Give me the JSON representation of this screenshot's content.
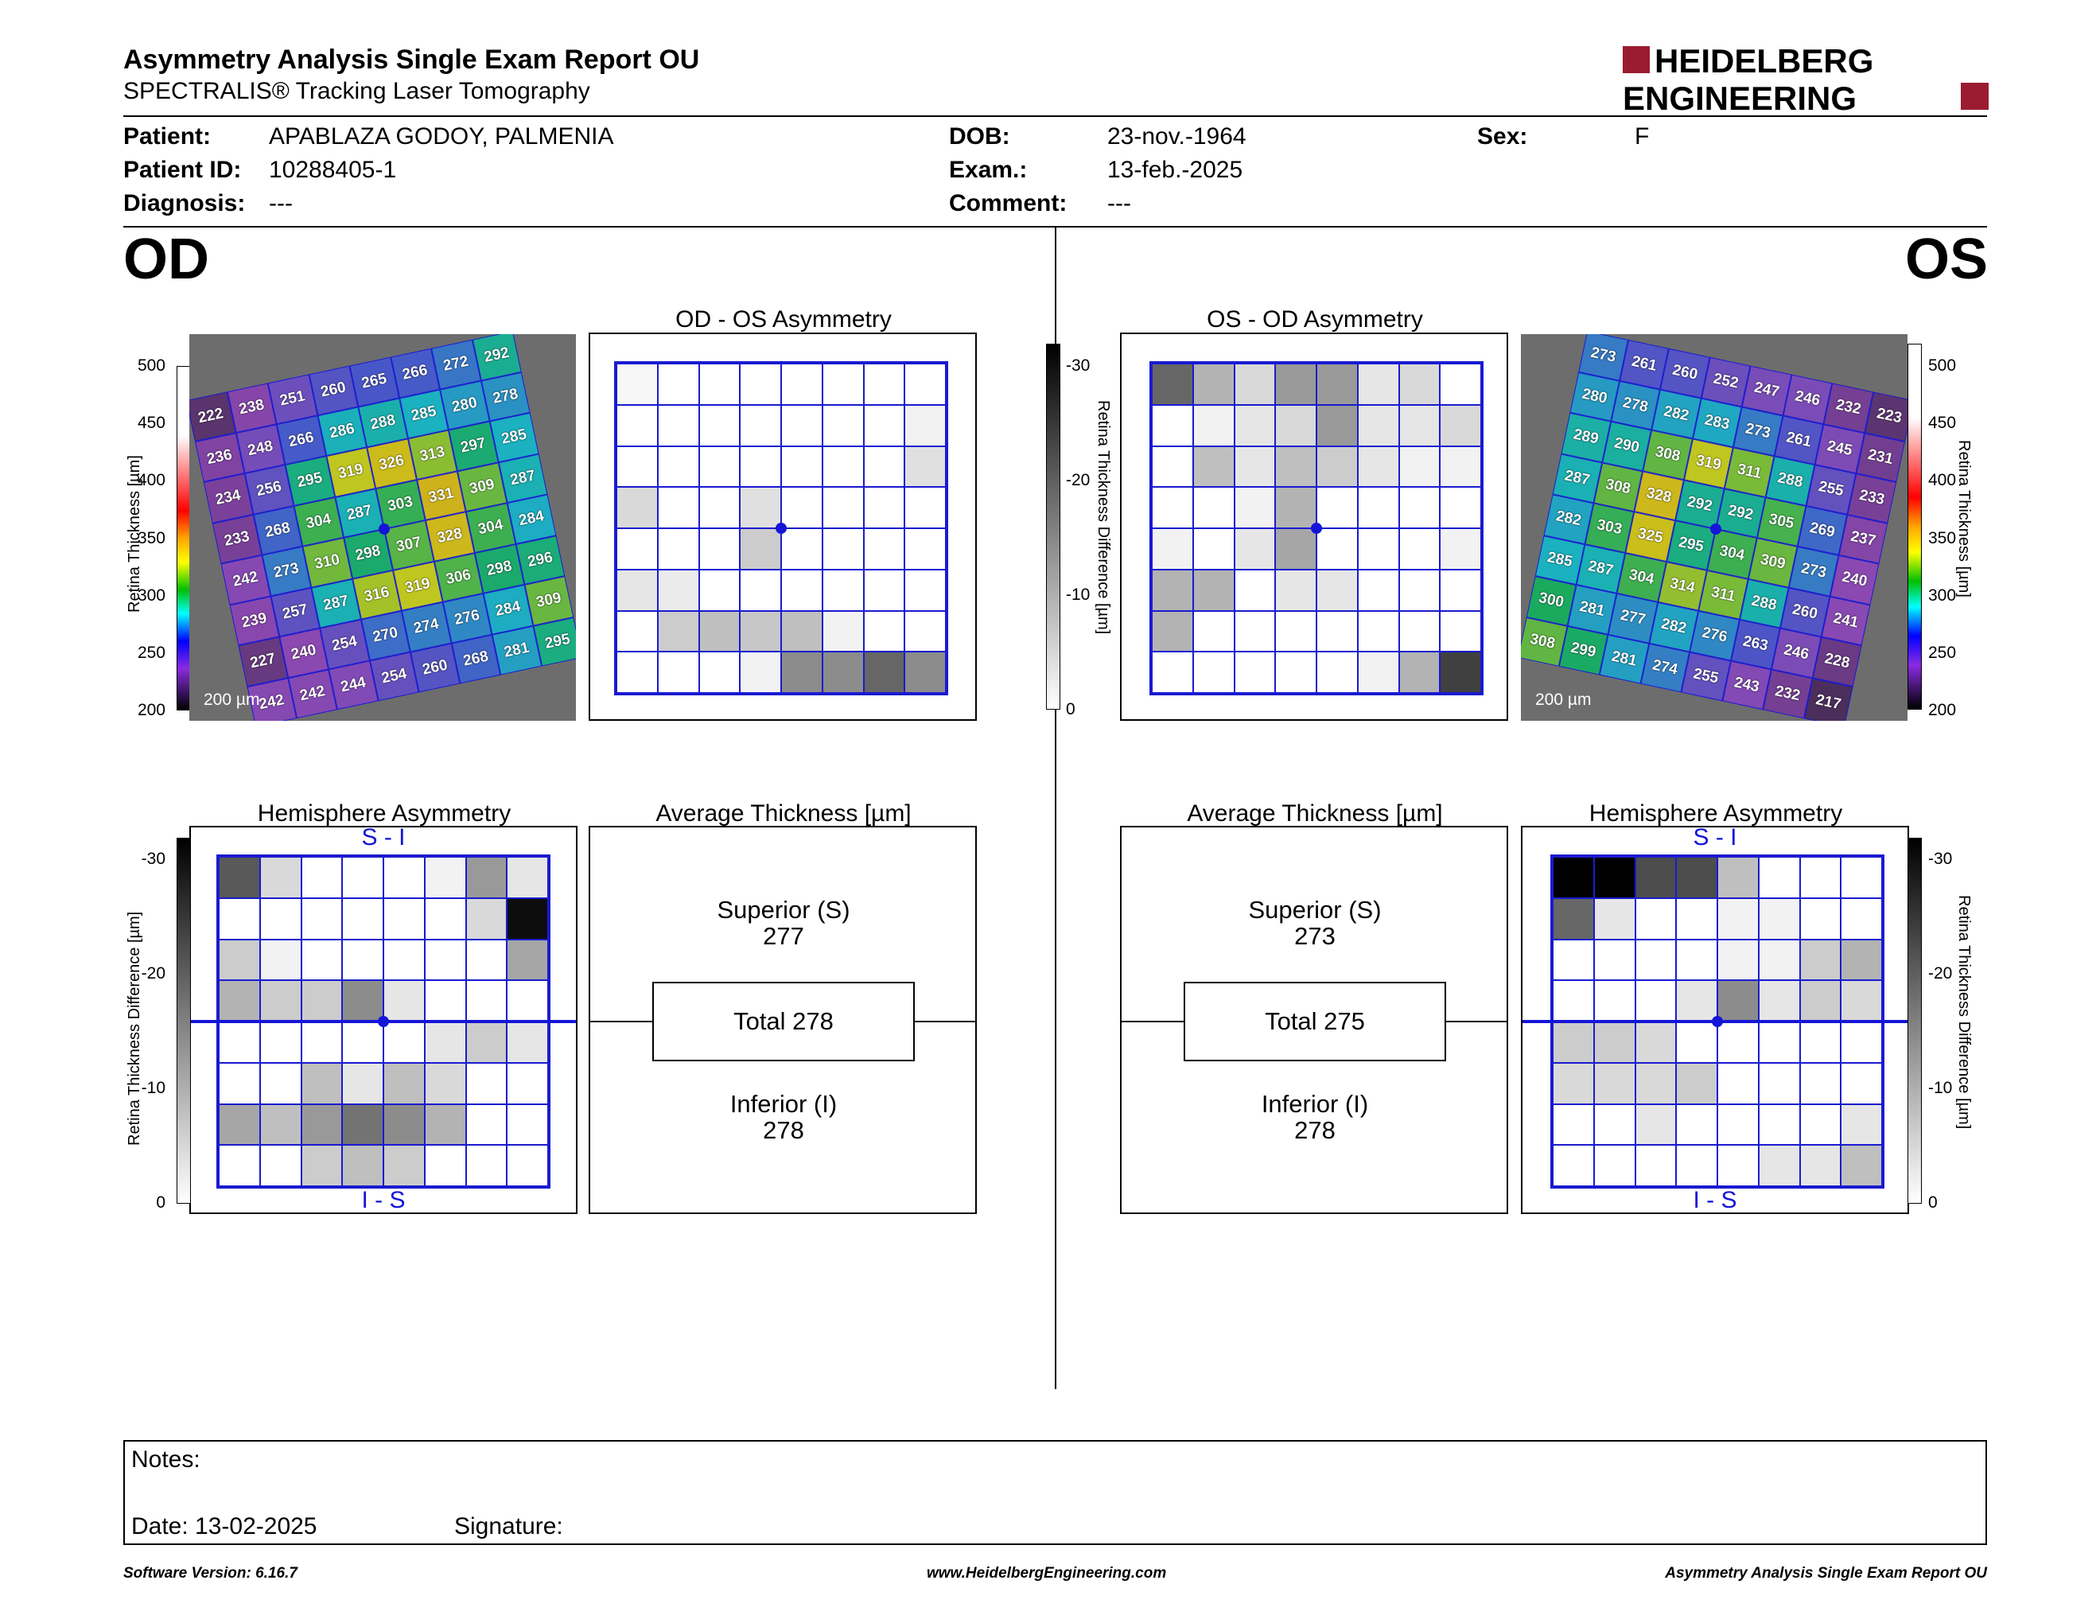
{
  "header": {
    "title": "Asymmetry Analysis Single Exam Report OU",
    "subtitle": "SPECTRALIS® Tracking Laser Tomography",
    "logo_line1": "HEIDELBERG",
    "logo_line2": "ENGINEERING"
  },
  "patient": {
    "patient_label": "Patient:",
    "patient_value": "APABLAZA GODOY, PALMENIA",
    "id_label": "Patient ID:",
    "id_value": "10288405-1",
    "diagnosis_label": "Diagnosis:",
    "diagnosis_value": "---",
    "dob_label": "DOB:",
    "dob_value": "23-nov.-1964",
    "exam_label": "Exam.:",
    "exam_value": "13-feb.-2025",
    "comment_label": "Comment:",
    "comment_value": "---",
    "sex_label": "Sex:",
    "sex_value": "F"
  },
  "od": {
    "eye_label": "OD",
    "asym_title": "OD - OS Asymmetry",
    "hemi_title": "Hemisphere Asymmetry",
    "avg_title": "Average Thickness [µm]",
    "superior_label": "Superior (S)",
    "superior_value": "277",
    "total_label": "Total 278",
    "inferior_label": "Inferior (I)",
    "inferior_value": "278",
    "si_top": "S - I",
    "si_bottom": "I - S",
    "scale_label": "200 µm",
    "thickness": [
      [
        222,
        238,
        251,
        260,
        265,
        266,
        272,
        292
      ],
      [
        236,
        248,
        266,
        286,
        288,
        285,
        280,
        278
      ],
      [
        234,
        256,
        295,
        319,
        326,
        313,
        297,
        285
      ],
      [
        233,
        268,
        304,
        287,
        303,
        331,
        309,
        287
      ],
      [
        242,
        273,
        310,
        298,
        307,
        328,
        304,
        284
      ],
      [
        239,
        257,
        287,
        316,
        319,
        306,
        298,
        296
      ],
      [
        227,
        240,
        254,
        270,
        274,
        276,
        284,
        309
      ],
      [
        242,
        242,
        244,
        254,
        260,
        268,
        281,
        295
      ]
    ],
    "asym_grid": [
      [
        0.03,
        0,
        0,
        0,
        0,
        0,
        0,
        0
      ],
      [
        0,
        0,
        0,
        0,
        0,
        0,
        0,
        0.05
      ],
      [
        0,
        0,
        0,
        0,
        0,
        0,
        0,
        0.12
      ],
      [
        0.15,
        0,
        0,
        0.12,
        0,
        0,
        0,
        0
      ],
      [
        0,
        0,
        0,
        0.2,
        0,
        0,
        0,
        0
      ],
      [
        0.1,
        0.08,
        0,
        0,
        0,
        0,
        0,
        0
      ],
      [
        0,
        0.2,
        0.25,
        0.22,
        0.25,
        0.05,
        0,
        0
      ],
      [
        0,
        0,
        0,
        0.05,
        0.45,
        0.45,
        0.6,
        0.45
      ]
    ],
    "hemi_grid": [
      [
        0.65,
        0.15,
        0,
        0,
        0,
        0.05,
        0.4,
        0.1
      ],
      [
        0,
        0,
        0,
        0,
        0,
        0,
        0.15,
        0.95
      ],
      [
        0.2,
        0.05,
        0,
        0,
        0,
        0,
        0,
        0.35
      ],
      [
        0.3,
        0.2,
        0.2,
        0.45,
        0.1,
        0,
        0,
        0
      ],
      [
        0,
        0,
        0,
        0,
        0,
        0.1,
        0.2,
        0.1
      ],
      [
        0,
        0,
        0.25,
        0.1,
        0.25,
        0.15,
        0,
        0
      ],
      [
        0.35,
        0.25,
        0.4,
        0.55,
        0.45,
        0.3,
        0,
        0
      ],
      [
        0,
        0,
        0.2,
        0.25,
        0.2,
        0,
        0,
        0
      ]
    ]
  },
  "os": {
    "eye_label": "OS",
    "asym_title": "OS - OD Asymmetry",
    "hemi_title": "Hemisphere Asymmetry",
    "avg_title": "Average Thickness [µm]",
    "superior_label": "Superior (S)",
    "superior_value": "273",
    "total_label": "Total 275",
    "inferior_label": "Inferior (I)",
    "inferior_value": "278",
    "si_top": "S - I",
    "si_bottom": "I - S",
    "scale_label": "200 µm",
    "thickness": [
      [
        273,
        261,
        260,
        252,
        247,
        246,
        232,
        223
      ],
      [
        280,
        278,
        282,
        283,
        273,
        261,
        245,
        231
      ],
      [
        289,
        290,
        308,
        319,
        311,
        288,
        255,
        233
      ],
      [
        287,
        308,
        328,
        292,
        292,
        305,
        269,
        237
      ],
      [
        282,
        303,
        325,
        295,
        304,
        309,
        273,
        240
      ],
      [
        285,
        287,
        304,
        314,
        311,
        288,
        260,
        241
      ],
      [
        300,
        281,
        277,
        282,
        276,
        263,
        246,
        228
      ],
      [
        308,
        299,
        281,
        274,
        255,
        243,
        232,
        217
      ]
    ],
    "asym_grid": [
      [
        0.6,
        0.3,
        0.15,
        0.4,
        0.4,
        0.1,
        0.15,
        0
      ],
      [
        0,
        0.05,
        0.1,
        0.15,
        0.4,
        0.1,
        0.1,
        0.15
      ],
      [
        0,
        0.25,
        0.1,
        0.25,
        0.2,
        0.1,
        0.05,
        0.05
      ],
      [
        0,
        0,
        0.05,
        0.3,
        0,
        0,
        0,
        0
      ],
      [
        0.05,
        0,
        0.1,
        0.35,
        0,
        0,
        0,
        0.05
      ],
      [
        0.3,
        0.3,
        0,
        0.1,
        0.1,
        0,
        0,
        0
      ],
      [
        0.3,
        0,
        0,
        0,
        0,
        0,
        0,
        0
      ],
      [
        0,
        0,
        0,
        0,
        0,
        0.05,
        0.3,
        0.75
      ]
    ],
    "hemi_grid": [
      [
        1,
        1,
        0.7,
        0.7,
        0.25,
        0,
        0,
        0
      ],
      [
        0.6,
        0.1,
        0,
        0,
        0.05,
        0.05,
        0,
        0
      ],
      [
        0,
        0,
        0,
        0,
        0.05,
        0.05,
        0.2,
        0.3
      ],
      [
        0,
        0,
        0,
        0.1,
        0.45,
        0.1,
        0.2,
        0.15
      ],
      [
        0.2,
        0.2,
        0.15,
        0,
        0,
        0,
        0,
        0
      ],
      [
        0.15,
        0.15,
        0.15,
        0.2,
        0,
        0,
        0,
        0
      ],
      [
        0,
        0,
        0.1,
        0,
        0,
        0,
        0,
        0.1
      ],
      [
        0,
        0,
        0,
        0,
        0,
        0.1,
        0.1,
        0.25
      ]
    ]
  },
  "scales": {
    "thickness_label": "Retina Thickness [µm]",
    "thickness_ticks": [
      "500",
      "450",
      "400",
      "350",
      "300",
      "250",
      "200"
    ],
    "diff_label": "Retina Thickness Difference [µm]",
    "diff_ticks": [
      "-30",
      "-20",
      "-10",
      "0"
    ]
  },
  "notes": {
    "notes_label": "Notes:",
    "date_label": "Date: 13-02-2025",
    "signature_label": "Signature:"
  },
  "footer": {
    "software": "Software Version: 6.16.7",
    "website": "www.HeidelbergEngineering.com",
    "report": "Asymmetry Analysis Single Exam Report OU"
  },
  "colors": {
    "grid_blue": "#1a1ad0",
    "logo_red": "#9b1b30"
  }
}
